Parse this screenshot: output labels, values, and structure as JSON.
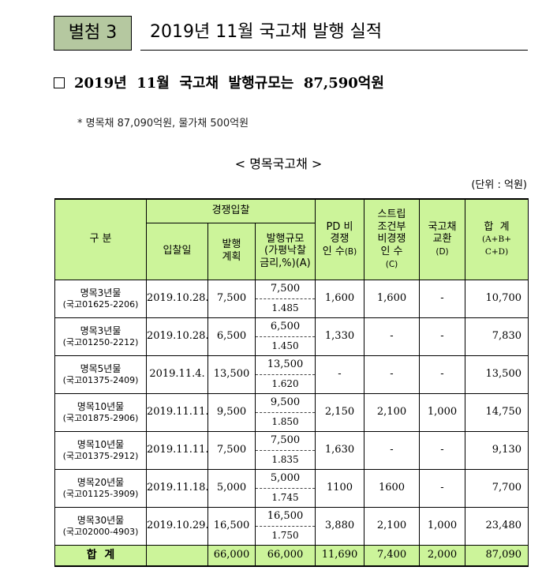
{
  "attachment": {
    "label": "별첨 3",
    "title": "2019년 11월 국고채 발행 실적"
  },
  "heading": {
    "text": "2019년  11월  국고채  발행규모는  87,590억원"
  },
  "note": "* 명목채 87,090억원, 물가채 500억원",
  "table_title": "< 명목국고채 >",
  "unit": "(단위 : 억원)",
  "headers": {
    "category": "구 분",
    "competitive": "경쟁입찰",
    "auction_date": "입찰일",
    "plan": "발행\n계획",
    "issue_size": "발행규모\n(가평낙찰\n금리,%)(A)",
    "pd": "PD 비\n경쟁\n인 수",
    "pd_tag": "(B)",
    "strip": "스트립\n조건부\n비경쟁\n인 수",
    "strip_tag": "(C)",
    "exchange": "국고채\n교환",
    "exchange_tag": "(D)",
    "total": "합  계",
    "total_formula": "(A+B+\nC+D)"
  },
  "rows": [
    {
      "name": "명목3년물",
      "code": "(국고01625-2206)",
      "date": "2019.10.28.",
      "plan": "7,500",
      "issue": "7,500",
      "rate": "1.485",
      "pd": "1,600",
      "strip": "1,600",
      "exchange": "-",
      "total": "10,700"
    },
    {
      "name": "명목3년물",
      "code": "(국고01250-2212)",
      "date": "2019.10.28.",
      "plan": "6,500",
      "issue": "6,500",
      "rate": "1.450",
      "pd": "1,330",
      "strip": "-",
      "exchange": "-",
      "total": "7,830"
    },
    {
      "name": "명목5년물",
      "code": "(국고01375-2409)",
      "date": "2019.11.4.",
      "plan": "13,500",
      "issue": "13,500",
      "rate": "1.620",
      "pd": "-",
      "strip": "-",
      "exchange": "-",
      "total": "13,500"
    },
    {
      "name": "명목10년물",
      "code": "(국고01875-2906)",
      "date": "2019.11.11.",
      "plan": "9,500",
      "issue": "9,500",
      "rate": "1.850",
      "pd": "2,150",
      "strip": "2,100",
      "exchange": "1,000",
      "total": "14,750"
    },
    {
      "name": "명목10년물",
      "code": "(국고01375-2912)",
      "date": "2019.11.11.",
      "plan": "7,500",
      "issue": "7,500",
      "rate": "1.835",
      "pd": "1,630",
      "strip": "-",
      "exchange": "-",
      "total": "9,130"
    },
    {
      "name": "명목20년물",
      "code": "(국고01125-3909)",
      "date": "2019.11.18.",
      "plan": "5,000",
      "issue": "5,000",
      "rate": "1.745",
      "pd": "1100",
      "strip": "1600",
      "exchange": "-",
      "total": "7,700"
    },
    {
      "name": "명목30년물",
      "code": "(국고02000-4903)",
      "date": "2019.10.29.",
      "plan": "16,500",
      "issue": "16,500",
      "rate": "1.750",
      "pd": "3,880",
      "strip": "2,100",
      "exchange": "1,000",
      "total": "23,480"
    }
  ],
  "totals": {
    "label": "합  계",
    "date": "",
    "plan": "66,000",
    "issue": "66,000",
    "pd": "11,690",
    "strip": "7,400",
    "exchange": "2,000",
    "total": "87,090"
  },
  "colors": {
    "header_bg": "#ccf49a",
    "attachment_bg": "#b5c8a0"
  }
}
